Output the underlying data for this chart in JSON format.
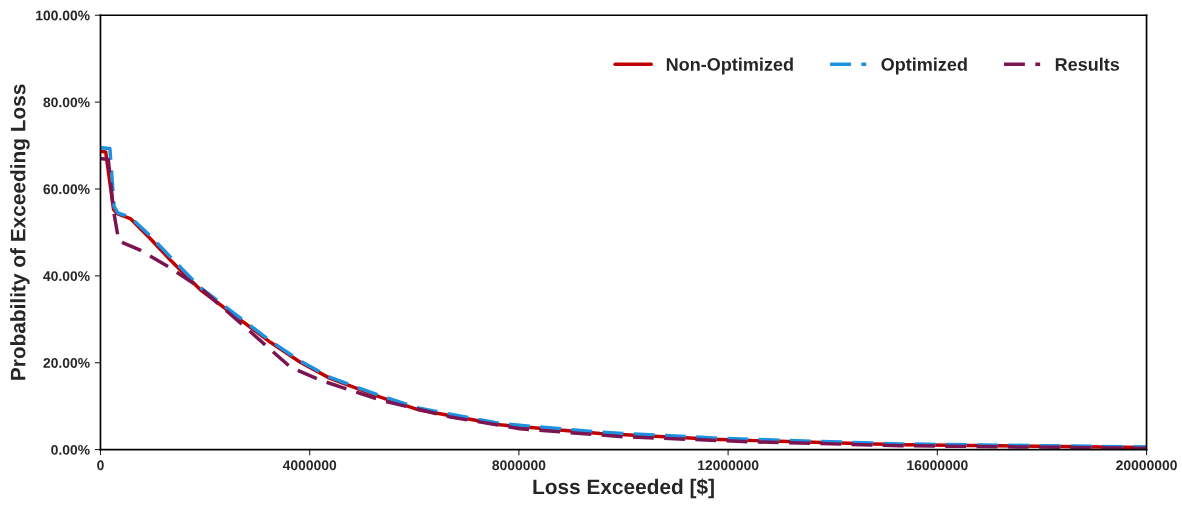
{
  "chart_data": {
    "type": "line",
    "xlabel": "Loss Exceeded [$]",
    "ylabel": "Probability of Exceeding Loss",
    "xlim": [
      0,
      20000000
    ],
    "xticks": [
      0,
      4000000,
      8000000,
      12000000,
      16000000,
      20000000
    ],
    "ylim": [
      0,
      100
    ],
    "yticks": [
      {
        "value": 0,
        "label": "0.00%"
      },
      {
        "value": 20,
        "label": "20.00%"
      },
      {
        "value": 40,
        "label": "40.00%"
      },
      {
        "value": 60,
        "label": "60.00%"
      },
      {
        "value": 80,
        "label": "80.00%"
      },
      {
        "value": 100,
        "label": "100.00%"
      }
    ],
    "grid": false,
    "legend": "top right",
    "marker": "none",
    "series": [
      {
        "name": "Non-Optimized",
        "color": "#c00000",
        "line_style": "solid",
        "x": [
          0,
          100000,
          250000,
          320000,
          570000,
          950000,
          1340000,
          1910000,
          2670000,
          3250000,
          3820000,
          4390000,
          5350000,
          6100000,
          7640000,
          9550000,
          11840000,
          15300000,
          20000000
        ],
        "values": [
          68.7,
          68.5,
          55.3,
          54.3,
          53.2,
          48.6,
          43.6,
          36.8,
          29.9,
          24.7,
          20.1,
          16.4,
          12.1,
          9.1,
          5.7,
          3.7,
          2.3,
          1.1,
          0.5
        ]
      },
      {
        "name": "Optimized",
        "color": "#1e90e0",
        "line_style": "dashed",
        "x": [
          0,
          180000,
          260000,
          330000,
          570000,
          950000,
          1340000,
          1910000,
          2670000,
          3250000,
          3820000,
          4390000,
          5350000,
          6100000,
          7640000,
          9550000,
          11840000,
          15300000,
          20000000
        ],
        "values": [
          69.5,
          69.3,
          56.0,
          54.5,
          53.5,
          49.2,
          44.3,
          37.3,
          30.3,
          25.0,
          20.4,
          16.6,
          12.4,
          9.5,
          6.0,
          4.0,
          2.6,
          1.3,
          0.6
        ]
      },
      {
        "name": "Results",
        "color": "#7b1450",
        "line_style": "dashed",
        "x": [
          0,
          150000,
          250000,
          350000,
          760000,
          1340000,
          1910000,
          2670000,
          3630000,
          4200000,
          5350000,
          6690000,
          8020000,
          9930000,
          12400000,
          15300000,
          20000000
        ],
        "values": [
          67.0,
          66.8,
          55.0,
          48.0,
          45.9,
          41.8,
          37.2,
          29.2,
          19.0,
          16.0,
          11.4,
          7.5,
          4.8,
          3.0,
          1.8,
          0.9,
          0.3
        ]
      }
    ]
  }
}
